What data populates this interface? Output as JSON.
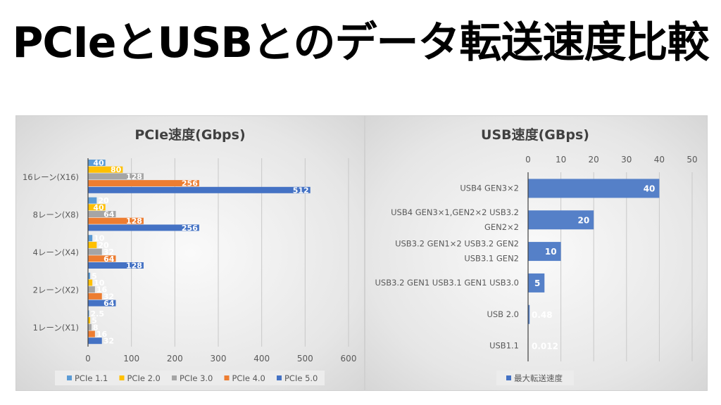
{
  "page_title": "PCIeとUSBとのデータ転送速度比較",
  "chart_data": [
    {
      "type": "bar",
      "orientation": "horizontal",
      "title": "PCIe速度(Gbps)",
      "categories": [
        "16レーン(X16)",
        "8レーン(X8)",
        "4レーン(X4)",
        "2レーン(X2)",
        "1レーン(X1)"
      ],
      "series": [
        {
          "name": "PCIe 1.1",
          "color": "#5B9BD5",
          "values": [
            40,
            20,
            10,
            5,
            2.5
          ]
        },
        {
          "name": "PCIe 2.0",
          "color": "#FFC000",
          "values": [
            80,
            40,
            20,
            10,
            5
          ]
        },
        {
          "name": "PCIe 3.0",
          "color": "#A5A5A5",
          "values": [
            128,
            64,
            32,
            16,
            8
          ]
        },
        {
          "name": "PCIe 4.0",
          "color": "#ED7D31",
          "values": [
            256,
            128,
            64,
            32,
            16
          ]
        },
        {
          "name": "PCIe 5.0",
          "color": "#4472C4",
          "values": [
            512,
            256,
            128,
            64,
            32
          ]
        }
      ],
      "xlim": [
        0,
        600
      ],
      "xticks": [
        "0",
        "100",
        "200",
        "300",
        "400",
        "500",
        "600"
      ],
      "grid": true,
      "data_labels": true,
      "legend": "bottom"
    },
    {
      "type": "bar",
      "orientation": "horizontal",
      "title": "USB速度(GBps)",
      "categories": [
        [
          "USB4 GEN3×2"
        ],
        [
          "USB4 GEN3×1,GEN2×2 USB3.2",
          "GEN2×2"
        ],
        [
          "USB3.2 GEN1×2 USB3.2 GEN2",
          "USB3.1 GEN2"
        ],
        [
          "USB3.2 GEN1  USB3.1 GEN1  USB3.0"
        ],
        [
          "USB 2.0"
        ],
        [
          "USB1.1"
        ]
      ],
      "series": [
        {
          "name": "最大転送速度",
          "color": "#4472C4",
          "values": [
            40,
            20,
            10,
            5,
            0.48,
            0.012
          ],
          "labels": [
            "40",
            "20",
            "10",
            "5",
            "0.48",
            "0.012"
          ]
        }
      ],
      "xlim": [
        0,
        50
      ],
      "xticks": [
        "0",
        "10",
        "20",
        "30",
        "40",
        "50"
      ],
      "xaxis_position": "top",
      "grid": true,
      "data_labels": true,
      "legend": "bottom"
    }
  ]
}
